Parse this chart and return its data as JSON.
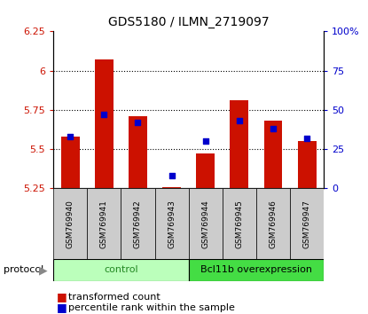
{
  "title": "GDS5180 / ILMN_2719097",
  "samples": [
    "GSM769940",
    "GSM769941",
    "GSM769942",
    "GSM769943",
    "GSM769944",
    "GSM769945",
    "GSM769946",
    "GSM769947"
  ],
  "transformed_counts": [
    5.58,
    6.07,
    5.71,
    5.26,
    5.47,
    5.81,
    5.68,
    5.55
  ],
  "percentile_ranks": [
    33,
    47,
    42,
    8,
    30,
    43,
    38,
    32
  ],
  "ylim_left": [
    5.25,
    6.25
  ],
  "ylim_right": [
    0,
    100
  ],
  "yticks_left": [
    5.25,
    5.5,
    5.75,
    6.0,
    6.25
  ],
  "yticks_right": [
    0,
    25,
    50,
    75,
    100
  ],
  "ytick_labels_left": [
    "5.25",
    "5.5",
    "5.75",
    "6",
    "6.25"
  ],
  "ytick_labels_right": [
    "0",
    "25",
    "50",
    "75",
    "100%"
  ],
  "bar_color": "#cc1100",
  "dot_color": "#0000cc",
  "bar_bottom": 5.25,
  "control_color": "#bbffbb",
  "overexpression_color": "#44dd44",
  "control_text_color": "#228822",
  "group_bg_color": "#cccccc",
  "legend_bar_label": "transformed count",
  "legend_dot_label": "percentile rank within the sample",
  "protocol_label": "protocol",
  "gridline_values": [
    5.5,
    5.75,
    6.0
  ]
}
